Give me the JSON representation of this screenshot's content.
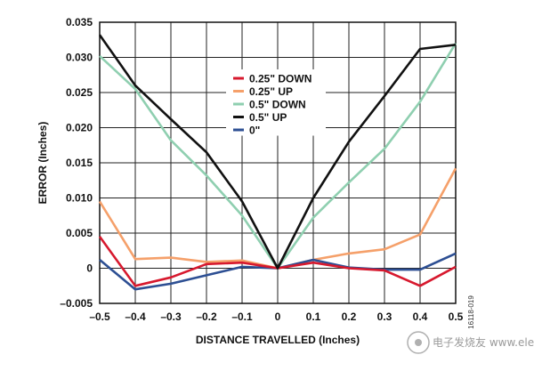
{
  "chart_data": {
    "type": "line",
    "title": "",
    "xlabel": "DISTANCE TRAVELLED (Inches)",
    "ylabel": "ERROR (Inches)",
    "xlim": [
      -0.5,
      0.5
    ],
    "ylim": [
      -0.005,
      0.035
    ],
    "grid": true,
    "legend_position": "top-center",
    "x_ticks": [
      "–0.5",
      "–0.4",
      "–0.3",
      "–0.2",
      "–0.1",
      "0",
      "0.1",
      "0.2",
      "0.3",
      "0.4",
      "0.5"
    ],
    "y_ticks": [
      "–0.005",
      "0",
      "0.005",
      "0.010",
      "0.015",
      "0.020",
      "0.025",
      "0.030",
      "0.035"
    ],
    "x": [
      -0.5,
      -0.4,
      -0.3,
      -0.2,
      -0.1,
      0,
      0.1,
      0.2,
      0.3,
      0.4,
      0.5
    ],
    "series": [
      {
        "name": "0.25\" DOWN",
        "color": "#d7192e",
        "values": [
          0.0045,
          -0.0025,
          -0.0013,
          0.0006,
          0.0008,
          0.0,
          0.0008,
          0.0,
          -0.0003,
          -0.0025,
          0.0002
        ]
      },
      {
        "name": "0.25\" UP",
        "color": "#f5a06a",
        "values": [
          0.0095,
          0.0013,
          0.0015,
          0.0009,
          0.0011,
          0.0,
          0.0012,
          0.0021,
          0.0027,
          0.0048,
          0.0142
        ]
      },
      {
        "name": "0.5\" DOWN",
        "color": "#8fcfb0",
        "values": [
          0.0302,
          0.0255,
          0.0182,
          0.0132,
          0.0075,
          0.0,
          0.0072,
          0.0122,
          0.017,
          0.0237,
          0.032
        ]
      },
      {
        "name": "0.5\" UP",
        "color": "#111111",
        "values": [
          0.0332,
          0.026,
          0.0212,
          0.0165,
          0.0095,
          0.0,
          0.01,
          0.018,
          0.0245,
          0.0312,
          0.0318
        ]
      },
      {
        "name": "0\"",
        "color": "#2d4f93",
        "values": [
          0.0012,
          -0.003,
          -0.0022,
          -0.001,
          0.0002,
          0.0,
          0.0012,
          0.0001,
          -0.0002,
          -0.0002,
          0.0021
        ]
      }
    ]
  },
  "figure_id": "16118-019",
  "watermark": "电子发烧友  www.elecfans.com"
}
